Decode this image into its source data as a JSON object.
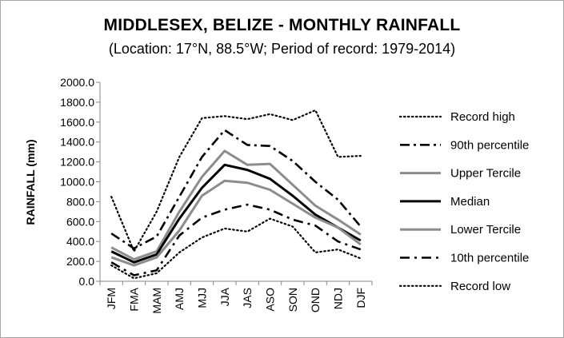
{
  "chart_data": {
    "type": "line",
    "title": "MIDDLESEX, BELIZE - MONTHLY RAINFALL",
    "subtitle": "(Location: 17°N, 88.5°W; Period of record: 1979-2014)",
    "ylabel": "RAINFALL (mm)",
    "xlabel": "",
    "ylim": [
      0,
      2000
    ],
    "yticks": [
      "0.0",
      "200.0",
      "400.0",
      "600.0",
      "800.0",
      "1000.0",
      "1200.0",
      "1400.0",
      "1600.0",
      "1800.0",
      "2000.0"
    ],
    "grid": false,
    "legend_position": "right",
    "categories": [
      "JFM",
      "FMA",
      "MAM",
      "AMJ",
      "MJJ",
      "JJA",
      "JAS",
      "ASO",
      "SON",
      "OND",
      "NDJ",
      "DJF"
    ],
    "series": [
      {
        "name": "Record high",
        "style": "dotted",
        "color": "#000000",
        "values": [
          850,
          300,
          700,
          1250,
          1640,
          1660,
          1630,
          1680,
          1620,
          1720,
          1250,
          1260
        ]
      },
      {
        "name": "90th percentile",
        "style": "dashdot",
        "color": "#000000",
        "values": [
          480,
          330,
          450,
          850,
          1250,
          1520,
          1370,
          1360,
          1210,
          1000,
          820,
          550
        ]
      },
      {
        "name": "Upper Tercile",
        "style": "solid",
        "color": "#8c8c8c",
        "values": [
          340,
          220,
          300,
          700,
          1050,
          1310,
          1170,
          1180,
          970,
          760,
          620,
          470
        ]
      },
      {
        "name": "Median",
        "style": "solid",
        "color": "#000000",
        "values": [
          300,
          190,
          270,
          630,
          940,
          1170,
          1120,
          1030,
          860,
          670,
          540,
          410
        ]
      },
      {
        "name": "Lower Tercile",
        "style": "solid",
        "color": "#8c8c8c",
        "values": [
          240,
          160,
          240,
          510,
          860,
          1010,
          990,
          920,
          780,
          640,
          540,
          370
        ]
      },
      {
        "name": "10th percentile",
        "style": "dashed",
        "color": "#000000",
        "values": [
          190,
          60,
          110,
          460,
          640,
          720,
          770,
          720,
          620,
          560,
          400,
          320
        ]
      },
      {
        "name": "Record low",
        "style": "dotted",
        "color": "#000000",
        "values": [
          160,
          30,
          80,
          290,
          440,
          530,
          500,
          630,
          550,
          290,
          320,
          230
        ]
      }
    ]
  }
}
